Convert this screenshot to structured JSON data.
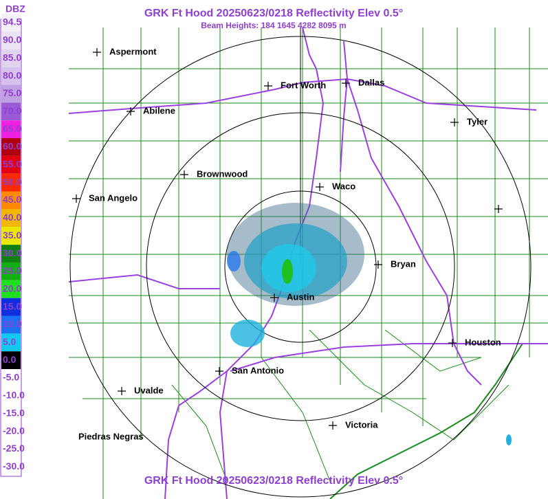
{
  "header": {
    "title": "GRK Ft Hood 20250623/0218 Reflectivity Elev 0.5°",
    "subtitle": "Beam Heights: 184 1645 4282 8095 m",
    "footer_title": "GRK Ft Hood 20250623/0218 Reflectivity Elev 0.5°"
  },
  "legend": {
    "title": "DBZ",
    "items": [
      {
        "label": "94.5",
        "color": "#f4f0f8"
      },
      {
        "label": "90.0",
        "color": "#ece4f4"
      },
      {
        "label": "85.0",
        "color": "#e0d4ee"
      },
      {
        "label": "80.0",
        "color": "#d6c2ea"
      },
      {
        "label": "75.0",
        "color": "#c0a0e0"
      },
      {
        "label": "70.0",
        "color": "#9a5ad6"
      },
      {
        "label": "65.0",
        "color": "#f020e0"
      },
      {
        "label": "60.0",
        "color": "#b00010"
      },
      {
        "label": "55.0",
        "color": "#e00010"
      },
      {
        "label": "50.0",
        "color": "#ff2a00"
      },
      {
        "label": "45.0",
        "color": "#ff8a00"
      },
      {
        "label": "40.0",
        "color": "#f0b800"
      },
      {
        "label": "35.0",
        "color": "#e8e800"
      },
      {
        "label": "30.0",
        "color": "#108010"
      },
      {
        "label": "25.0",
        "color": "#10b010"
      },
      {
        "label": "20.0",
        "color": "#20e020"
      },
      {
        "label": "15.0",
        "color": "#1030e0"
      },
      {
        "label": "10.0",
        "color": "#1a70f0"
      },
      {
        "label": "5.0",
        "color": "#10c8f0"
      },
      {
        "label": "0.0",
        "color": "#000000"
      },
      {
        "label": "-5.0",
        "color": "#ffffff"
      },
      {
        "label": "-10.0",
        "color": "#ffffff"
      },
      {
        "label": "-15.0",
        "color": "#ffffff"
      },
      {
        "label": "-20.0",
        "color": "#ffffff"
      },
      {
        "label": "-25.0",
        "color": "#ffffff"
      },
      {
        "label": "-30.0",
        "color": "#ffffff"
      }
    ]
  },
  "cities": [
    "Aspermont",
    "Fort Worth",
    "Dallas",
    "Abilene",
    "Tyler",
    "Brownwood",
    "Waco",
    "San Angelo",
    "Bryan",
    "Austin",
    "Houston",
    "San Antonio",
    "Uvalde",
    "Victoria",
    "Piedras Negras"
  ]
}
